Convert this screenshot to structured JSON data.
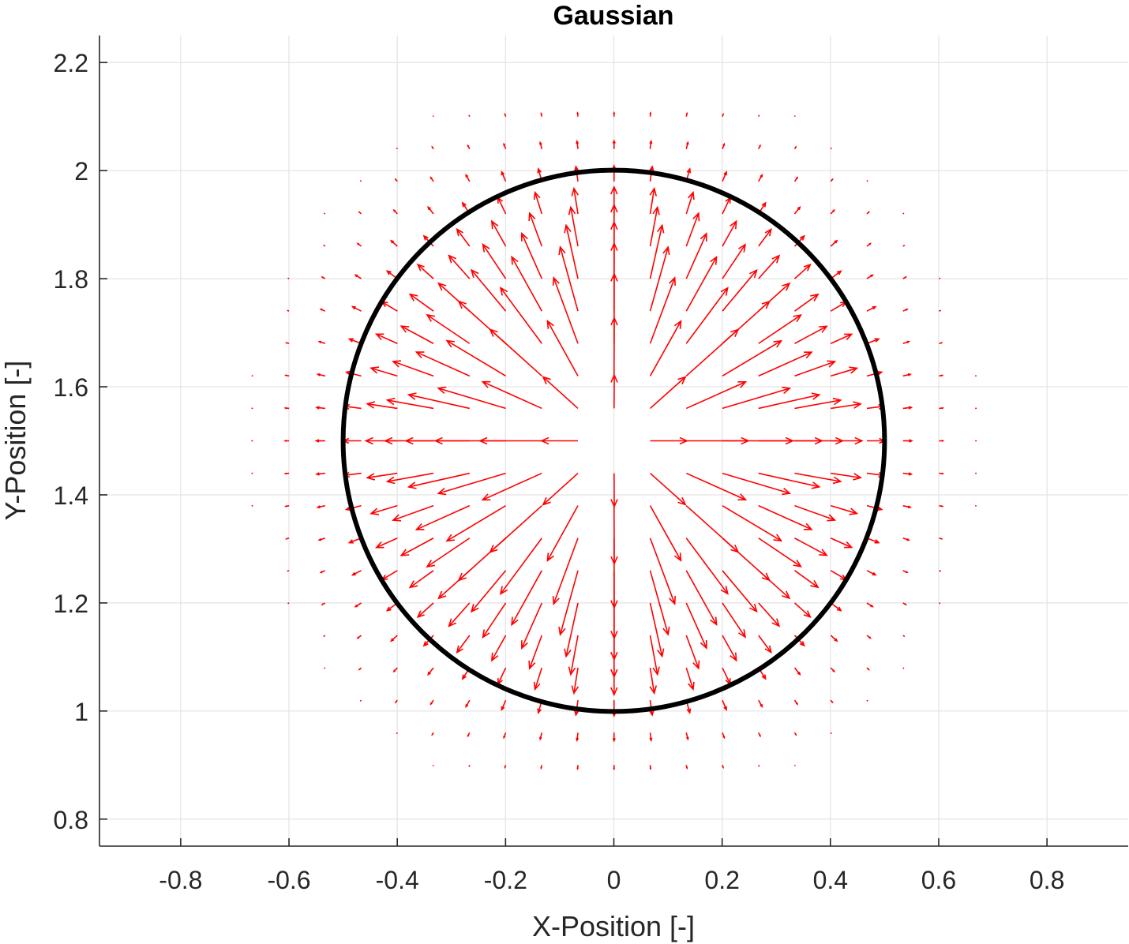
{
  "chart_data": {
    "type": "quiver",
    "title": "Gaussian",
    "xlabel": "X-Position [-]",
    "ylabel": "Y-Position [-]",
    "xlim": [
      -0.95,
      0.95
    ],
    "ylim": [
      0.75,
      2.25
    ],
    "xticks": [
      -0.8,
      -0.6,
      -0.4,
      -0.2,
      0,
      0.2,
      0.4,
      0.6,
      0.8
    ],
    "xtick_labels": [
      "-0.8",
      "-0.6",
      "-0.4",
      "-0.2",
      "0",
      "0.2",
      "0.4",
      "0.6",
      "0.8"
    ],
    "yticks": [
      0.8,
      1,
      1.2,
      1.4,
      1.6,
      1.8,
      2,
      2.2
    ],
    "ytick_labels": [
      "0.8",
      "1",
      "1.2",
      "1.4",
      "1.6",
      "1.8",
      "2",
      "2.2"
    ],
    "grid": true,
    "circle": {
      "center": [
        0,
        1.5
      ],
      "radius": 0.5,
      "color": "#000000"
    },
    "vector_field": {
      "center": [
        0,
        1.5
      ],
      "x_grid": {
        "start": -0.7333,
        "step": 0.0667,
        "count": 23
      },
      "y_grid": {
        "start": 0.9,
        "step": 0.06,
        "count": 21
      },
      "profile": "gaussian",
      "sigma": 0.2,
      "max_arrow_length": 0.13,
      "color": "#ff0000"
    }
  }
}
